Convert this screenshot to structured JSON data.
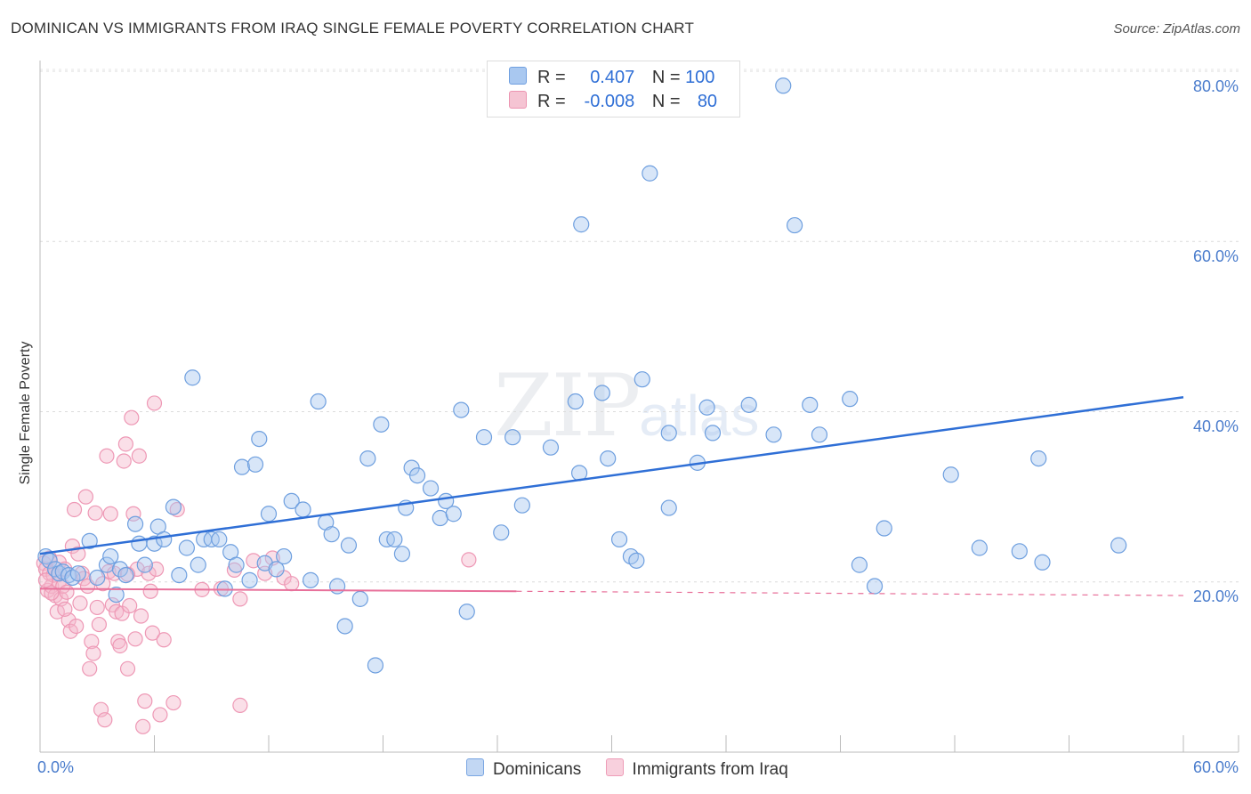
{
  "title": "DOMINICAN VS IMMIGRANTS FROM IRAQ SINGLE FEMALE POVERTY CORRELATION CHART",
  "source": "Source: ZipAtlas.com",
  "watermark": {
    "zip": "ZIP",
    "atlas": "atlas"
  },
  "legend": {
    "rows": [
      {
        "r_label": "R =",
        "r_value": "0.407",
        "n_label": "N =",
        "n_value": "100"
      },
      {
        "r_label": "R =",
        "r_value": "-0.008",
        "n_label": "N =",
        "n_value": "80"
      }
    ]
  },
  "chart_data": {
    "type": "scatter",
    "title": "DOMINICAN VS IMMIGRANTS FROM IRAQ SINGLE FEMALE POVERTY CORRELATION CHART",
    "xlabel": "",
    "ylabel": "Single Female Poverty",
    "xlim": [
      0,
      60
    ],
    "ylim": [
      0,
      80
    ],
    "x_tick_labels": [
      "0.0%",
      "60.0%"
    ],
    "y_tick_labels": [
      "20.0%",
      "40.0%",
      "60.0%",
      "80.0%"
    ],
    "y_ticks": [
      20,
      40,
      60,
      80
    ],
    "grid": true,
    "legend_position": "top-center",
    "colors": {
      "dominicans": "#a9c8f0",
      "dominicans_line": "#2f6fd6",
      "iraq": "#f5b8cb",
      "iraq_line": "#e8709a"
    },
    "series": [
      {
        "name": "Dominicans",
        "trend": {
          "x0": 0,
          "y0": 23.3,
          "x1": 60,
          "y1": 41.7
        },
        "points": [
          [
            0.3,
            23
          ],
          [
            0.5,
            22.5
          ],
          [
            0.8,
            21.5
          ],
          [
            1,
            21
          ],
          [
            1.2,
            21.2
          ],
          [
            1.5,
            20.8
          ],
          [
            1.7,
            20.5
          ],
          [
            2,
            21
          ],
          [
            2.6,
            24.8
          ],
          [
            3,
            20.5
          ],
          [
            3.5,
            22
          ],
          [
            3.7,
            23
          ],
          [
            4,
            18.5
          ],
          [
            4.2,
            21.5
          ],
          [
            4.5,
            20.8
          ],
          [
            5,
            26.8
          ],
          [
            5.2,
            24.5
          ],
          [
            5.5,
            22
          ],
          [
            6,
            24.5
          ],
          [
            6.2,
            26.5
          ],
          [
            6.5,
            25
          ],
          [
            7,
            28.8
          ],
          [
            7.3,
            20.8
          ],
          [
            7.7,
            24
          ],
          [
            8,
            44
          ],
          [
            8.3,
            22
          ],
          [
            8.6,
            25
          ],
          [
            9,
            25
          ],
          [
            9.4,
            25
          ],
          [
            9.7,
            19.2
          ],
          [
            10,
            23.5
          ],
          [
            10.3,
            22
          ],
          [
            10.6,
            33.5
          ],
          [
            11,
            20.2
          ],
          [
            11.3,
            33.8
          ],
          [
            11.5,
            36.8
          ],
          [
            11.8,
            22.2
          ],
          [
            12,
            28
          ],
          [
            12.4,
            21.5
          ],
          [
            12.8,
            23
          ],
          [
            13.2,
            29.5
          ],
          [
            13.8,
            28.5
          ],
          [
            14.2,
            20.2
          ],
          [
            14.6,
            41.2
          ],
          [
            15,
            27
          ],
          [
            15.3,
            25.6
          ],
          [
            15.6,
            19.5
          ],
          [
            16,
            14.8
          ],
          [
            16.2,
            24.3
          ],
          [
            16.8,
            18
          ],
          [
            17.2,
            34.5
          ],
          [
            17.6,
            10.2
          ],
          [
            17.9,
            38.5
          ],
          [
            18.2,
            25
          ],
          [
            18.6,
            25
          ],
          [
            19,
            23.3
          ],
          [
            19.2,
            28.7
          ],
          [
            19.5,
            33.4
          ],
          [
            19.8,
            32.5
          ],
          [
            20.5,
            31
          ],
          [
            21,
            27.5
          ],
          [
            21.3,
            29.5
          ],
          [
            21.7,
            28
          ],
          [
            22.1,
            40.2
          ],
          [
            22.4,
            16.5
          ],
          [
            23.3,
            37
          ],
          [
            24.2,
            25.8
          ],
          [
            24.8,
            37
          ],
          [
            25.3,
            29
          ],
          [
            26.8,
            35.8
          ],
          [
            28.1,
            41.2
          ],
          [
            28.3,
            32.8
          ],
          [
            28.4,
            62
          ],
          [
            29.5,
            42.2
          ],
          [
            29.8,
            34.5
          ],
          [
            30.4,
            25
          ],
          [
            31,
            23
          ],
          [
            31.3,
            22.5
          ],
          [
            31.6,
            43.8
          ],
          [
            32,
            68
          ],
          [
            33,
            37.5
          ],
          [
            33,
            28.7
          ],
          [
            34.5,
            34
          ],
          [
            35,
            40.5
          ],
          [
            35.3,
            37.5
          ],
          [
            37.2,
            40.8
          ],
          [
            38.5,
            37.3
          ],
          [
            39,
            78.3
          ],
          [
            39.6,
            61.9
          ],
          [
            40.4,
            40.8
          ],
          [
            40.9,
            37.3
          ],
          [
            42.5,
            41.5
          ],
          [
            43,
            22
          ],
          [
            43.8,
            19.5
          ],
          [
            44.3,
            26.3
          ],
          [
            47.8,
            32.6
          ],
          [
            49.3,
            24
          ],
          [
            51.4,
            23.6
          ],
          [
            52.4,
            34.5
          ],
          [
            52.6,
            22.3
          ],
          [
            56.6,
            24.3
          ]
        ]
      },
      {
        "name": "Immigrants from Iraq",
        "trend": {
          "x0": 0,
          "y0": 19.2,
          "x1": 25,
          "y1": 18.9,
          "dashed_to_x": 60,
          "dashed_to_y": 18.4
        },
        "points": [
          [
            0.2,
            22.2
          ],
          [
            0.3,
            21.5
          ],
          [
            0.4,
            19
          ],
          [
            0.5,
            21
          ],
          [
            0.5,
            22.8
          ],
          [
            0.6,
            19.5
          ],
          [
            0.7,
            20.8
          ],
          [
            0.8,
            18.4
          ],
          [
            0.9,
            16.5
          ],
          [
            1,
            22.3
          ],
          [
            1,
            20
          ],
          [
            1.1,
            18
          ],
          [
            1.2,
            19.5
          ],
          [
            1.3,
            21.5
          ],
          [
            1.4,
            18.8
          ],
          [
            1.5,
            15.5
          ],
          [
            1.6,
            14.2
          ],
          [
            1.7,
            24.2
          ],
          [
            1.8,
            28.5
          ],
          [
            1.9,
            14.8
          ],
          [
            2,
            23.3
          ],
          [
            2.2,
            21
          ],
          [
            2.3,
            20.4
          ],
          [
            2.4,
            30
          ],
          [
            2.5,
            19.5
          ],
          [
            2.6,
            9.8
          ],
          [
            2.7,
            13
          ],
          [
            2.8,
            11.6
          ],
          [
            2.9,
            28.1
          ],
          [
            3,
            17
          ],
          [
            3.1,
            15
          ],
          [
            3.2,
            5
          ],
          [
            3.4,
            3.8
          ],
          [
            3.5,
            34.8
          ],
          [
            3.6,
            21.2
          ],
          [
            3.7,
            28
          ],
          [
            3.8,
            17.3
          ],
          [
            3.9,
            21
          ],
          [
            4,
            16.5
          ],
          [
            4.1,
            13
          ],
          [
            4.2,
            12.5
          ],
          [
            4.3,
            16.3
          ],
          [
            4.4,
            34.2
          ],
          [
            4.5,
            36.2
          ],
          [
            4.6,
            9.8
          ],
          [
            4.7,
            17.2
          ],
          [
            4.8,
            39.3
          ],
          [
            4.9,
            28
          ],
          [
            5,
            13.3
          ],
          [
            5.1,
            21.5
          ],
          [
            5.2,
            34.8
          ],
          [
            5.3,
            16
          ],
          [
            5.4,
            3
          ],
          [
            5.5,
            6
          ],
          [
            5.7,
            21
          ],
          [
            5.9,
            14
          ],
          [
            6,
            41
          ],
          [
            6.1,
            21.5
          ],
          [
            6.3,
            4.4
          ],
          [
            6.5,
            13.2
          ],
          [
            7,
            5.8
          ],
          [
            7.2,
            28.5
          ],
          [
            9.5,
            19.2
          ],
          [
            10.2,
            21.4
          ],
          [
            10.5,
            5.5
          ],
          [
            10.5,
            18
          ],
          [
            11.2,
            22.5
          ],
          [
            11.8,
            21
          ],
          [
            12.2,
            22.8
          ],
          [
            12.8,
            20.5
          ],
          [
            13.2,
            19.8
          ],
          [
            22.5,
            22.6
          ],
          [
            0.3,
            20.2
          ],
          [
            0.6,
            18.7
          ],
          [
            1.3,
            16.8
          ],
          [
            2.1,
            17.5
          ],
          [
            3.3,
            19.8
          ],
          [
            4.6,
            20.9
          ],
          [
            5.8,
            18.9
          ],
          [
            8.5,
            19.1
          ]
        ]
      }
    ]
  },
  "bottom_legend": {
    "items": [
      "Dominicans",
      "Immigrants from Iraq"
    ]
  }
}
